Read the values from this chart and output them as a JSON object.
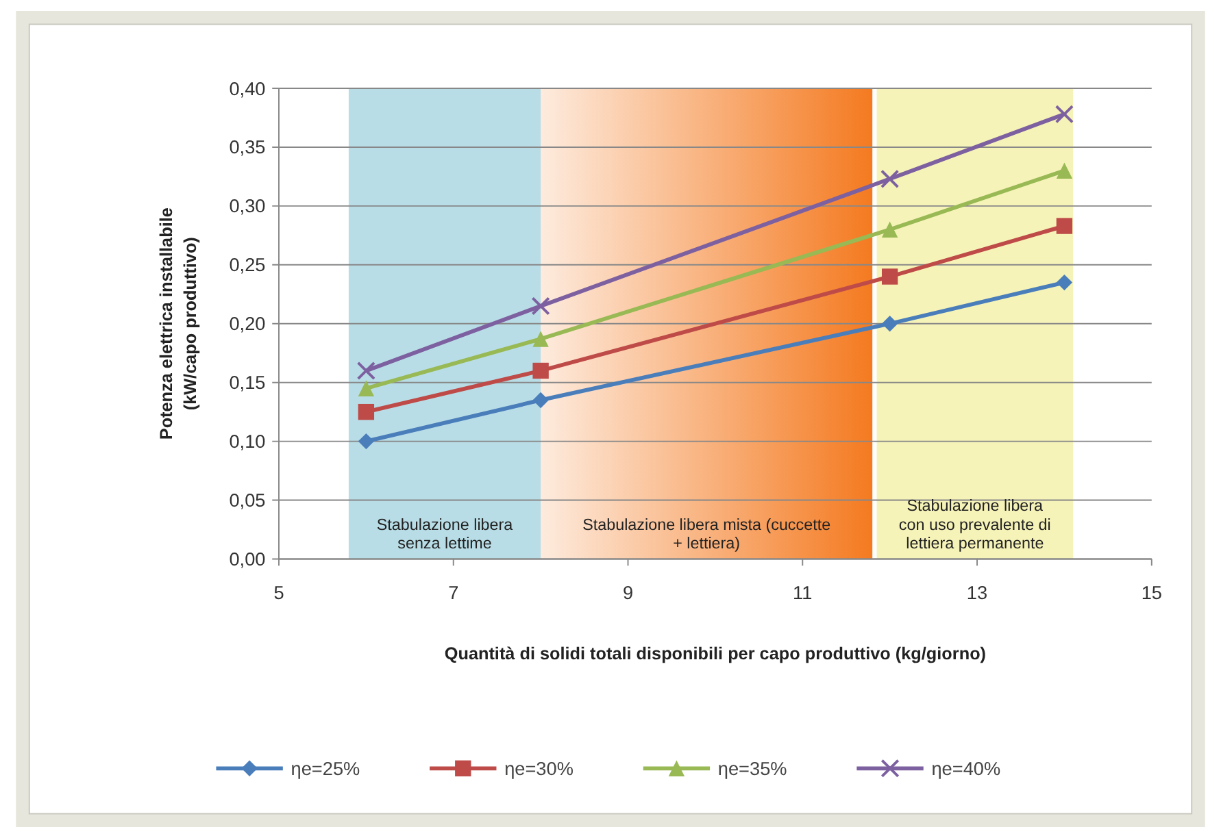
{
  "chart_data": {
    "type": "line",
    "xlabel": "Quantità di solidi totali disponibili per capo produttivo (kg/giorno)",
    "ylabel": "Potenza elettrica installabile\n(kW/capo produttivo)",
    "x": [
      6,
      8,
      12,
      14
    ],
    "series": [
      {
        "name": "ηe=25%",
        "color": "#4a7ebb",
        "marker": "diamond",
        "values": [
          0.1,
          0.135,
          0.2,
          0.235
        ]
      },
      {
        "name": "ηe=30%",
        "color": "#be4b48",
        "marker": "square",
        "values": [
          0.125,
          0.16,
          0.24,
          0.283
        ]
      },
      {
        "name": "ηe=35%",
        "color": "#98b954",
        "marker": "triangle",
        "values": [
          0.145,
          0.187,
          0.28,
          0.33
        ]
      },
      {
        "name": "ηe=40%",
        "color": "#7d60a0",
        "marker": "cross",
        "values": [
          0.16,
          0.215,
          0.323,
          0.378
        ]
      }
    ],
    "xlim": [
      5,
      15
    ],
    "xticks": [
      5,
      7,
      9,
      11,
      13,
      15
    ],
    "ylim": [
      0,
      0.4
    ],
    "yticks": [
      {
        "value": 0,
        "label": "0,00"
      },
      {
        "value": 0.05,
        "label": "0,05"
      },
      {
        "value": 0.1,
        "label": "0,10"
      },
      {
        "value": 0.15,
        "label": "0,15"
      },
      {
        "value": 0.2,
        "label": "0,20"
      },
      {
        "value": 0.25,
        "label": "0,25"
      },
      {
        "value": 0.3,
        "label": "0,30"
      },
      {
        "value": 0.35,
        "label": "0,35"
      },
      {
        "value": 0.4,
        "label": "0,40"
      }
    ],
    "bands": [
      {
        "axis": "x",
        "from": 5.8,
        "to": 8.0,
        "label": "Stabulazione libera senza lettime",
        "color": "#b8dde6"
      },
      {
        "axis": "x",
        "from": 8.0,
        "to": 11.8,
        "label": "Stabulazione libera mista (cuccette + lettiera)",
        "color": "#f47a20"
      },
      {
        "axis": "x",
        "from": 11.85,
        "to": 14.1,
        "label": "Stabulazione libera con uso prevalente di lettiera permanente",
        "color": "#f6f3b8"
      }
    ],
    "grid": "y",
    "legend": "bottom"
  }
}
